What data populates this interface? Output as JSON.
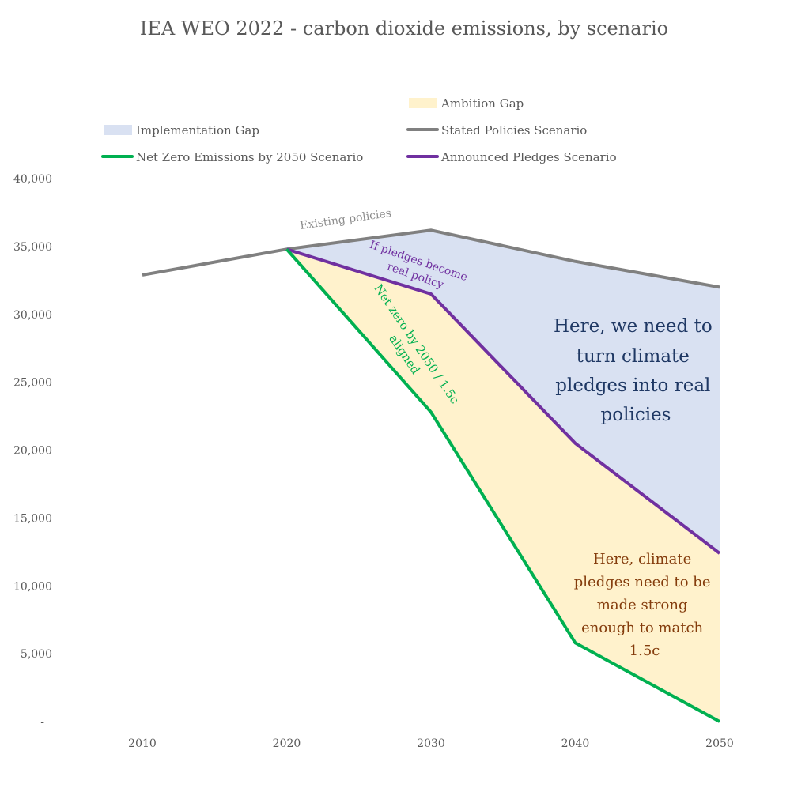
{
  "chart_data": {
    "type": "area",
    "title": "IEA WEO 2022 - carbon dioxide emissions, by scenario",
    "xlabel": "",
    "ylabel": "",
    "x": [
      2010,
      2020,
      2030,
      2040,
      2050
    ],
    "x_tick_labels": [
      "2010",
      "2020",
      "2030",
      "2040",
      "2050"
    ],
    "ylim": [
      0,
      40000
    ],
    "y_ticks": [
      0,
      5000,
      10000,
      15000,
      20000,
      25000,
      30000,
      35000,
      40000
    ],
    "y_tick_labels": [
      "-",
      "5,000",
      "10,000",
      "15,000",
      "20,000",
      "25,000",
      "30,000",
      "35,000",
      "40,000"
    ],
    "grid": false,
    "legend_position": "top",
    "series": [
      {
        "name": "Stated Policies Scenario",
        "kind": "line",
        "color": "#808080",
        "values": [
          32900,
          34800,
          36200,
          33900,
          32000
        ]
      },
      {
        "name": "Announced Pledges Scenario",
        "kind": "line",
        "color": "#7030a0",
        "values": [
          null,
          34800,
          31500,
          20500,
          12400
        ]
      },
      {
        "name": "Net Zero Emissions by 2050 Scenario",
        "kind": "line",
        "color": "#00b050",
        "values": [
          null,
          34800,
          22800,
          5800,
          0
        ]
      },
      {
        "name": "Implementation Gap",
        "kind": "band",
        "color": "#d9e1f2",
        "between": [
          "Announced Pledges Scenario",
          "Stated Policies Scenario"
        ]
      },
      {
        "name": "Ambition Gap",
        "kind": "band",
        "color": "#fff2cc",
        "between": [
          "Net Zero Emissions by 2050 Scenario",
          "Announced Pledges Scenario"
        ]
      }
    ],
    "legend": [
      {
        "label": "Ambition Gap",
        "swatch": "box",
        "color": "#fff2cc"
      },
      {
        "label": "Implementation Gap",
        "swatch": "box",
        "color": "#d9e1f2"
      },
      {
        "label": "Stated Policies Scenario",
        "swatch": "line",
        "color": "#808080"
      },
      {
        "label": "Net Zero Emissions by 2050 Scenario",
        "swatch": "line",
        "color": "#00b050"
      },
      {
        "label": "Announced Pledges Scenario",
        "swatch": "line",
        "color": "#7030a0"
      }
    ],
    "annotations": [
      {
        "id": "existing",
        "lines": [
          "Existing policies"
        ],
        "color": "#8c8c8c"
      },
      {
        "id": "pledges",
        "lines": [
          "If pledges become",
          "real policy"
        ],
        "color": "#7030a0"
      },
      {
        "id": "netzero",
        "lines": [
          "Net zero by 2050 / 1.5c",
          "aligned"
        ],
        "color": "#00b050"
      },
      {
        "id": "implementation",
        "lines": [
          "Here, we need to",
          "turn climate",
          "pledges into real",
          "policies"
        ],
        "color": "#1f3864"
      },
      {
        "id": "ambition",
        "lines": [
          "Here, climate",
          "pledges need to be",
          "made strong",
          "enough to match",
          "1.5c"
        ],
        "color": "#843c0c"
      }
    ]
  }
}
